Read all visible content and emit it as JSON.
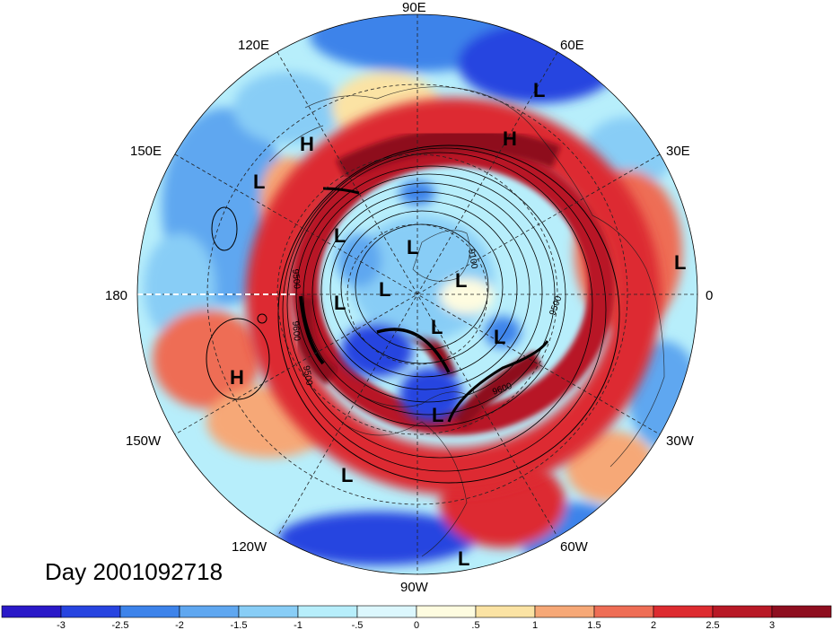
{
  "title": "Day 2001092718",
  "longitude_labels": [
    "90E",
    "60E",
    "120E",
    "150E",
    "30E",
    "180",
    "0",
    "150W",
    "30W",
    "120W",
    "60W",
    "90W"
  ],
  "contour_labels": [
    "9100",
    "9500",
    "9600",
    "9500",
    "9600",
    "9500"
  ],
  "pressure_centers": [
    {
      "type": "L"
    },
    {
      "type": "H"
    },
    {
      "type": "H"
    },
    {
      "type": "L"
    },
    {
      "type": "L"
    },
    {
      "type": "L"
    },
    {
      "type": "L"
    },
    {
      "type": "L"
    },
    {
      "type": "L"
    },
    {
      "type": "L"
    },
    {
      "type": "L"
    },
    {
      "type": "H"
    },
    {
      "type": "L"
    },
    {
      "type": "L"
    },
    {
      "type": "L"
    }
  ],
  "colorbar": {
    "ticks": [
      "-3",
      "-2.5",
      "-2",
      "-1.5",
      "-1",
      "-.5",
      "0",
      ".5",
      "1",
      "1.5",
      "2",
      "2.5",
      "3"
    ],
    "colors": [
      "#2a19c8",
      "#2744e0",
      "#3d83ea",
      "#5fa7f0",
      "#88cdf6",
      "#b7eefb",
      "#dcf7fd",
      "#fefce0",
      "#fbe3a4",
      "#f6a877",
      "#ee6d55",
      "#dd2b30",
      "#b81926",
      "#8e0e1f"
    ]
  }
}
